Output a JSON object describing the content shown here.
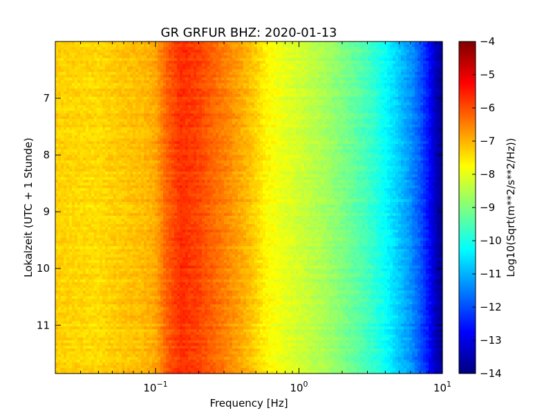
{
  "chart_data": {
    "type": "heatmap",
    "title": "GR GRFUR BHZ: 2020-01-13",
    "xlabel": "Frequency [Hz]",
    "ylabel": "Lokalzeit (UTC + 1 Stunde)",
    "x_scale": "log",
    "xlim": [
      0.02,
      10
    ],
    "ylim": [
      6.0,
      11.85
    ],
    "y_inverted": true,
    "x_ticks": [
      {
        "value": 0.1,
        "base": "10",
        "exp": "−1"
      },
      {
        "value": 1,
        "base": "10",
        "exp": "0"
      },
      {
        "value": 10,
        "base": "10",
        "exp": "1"
      }
    ],
    "y_ticks": [
      {
        "value": 7,
        "label": "7"
      },
      {
        "value": 8,
        "label": "8"
      },
      {
        "value": 9,
        "label": "9"
      },
      {
        "value": 10,
        "label": "10"
      },
      {
        "value": 11,
        "label": "11"
      }
    ],
    "colorbar": {
      "label": "Log10(Sqrt(m**2/s**2/Hz))",
      "range": [
        -14,
        -4
      ],
      "colormap": "jet",
      "ticks": [
        {
          "value": -4,
          "label": "−4"
        },
        {
          "value": -5,
          "label": "−5"
        },
        {
          "value": -6,
          "label": "−6"
        },
        {
          "value": -7,
          "label": "−7"
        },
        {
          "value": -8,
          "label": "−8"
        },
        {
          "value": -9,
          "label": "−9"
        },
        {
          "value": -10,
          "label": "−10"
        },
        {
          "value": -11,
          "label": "−11"
        },
        {
          "value": -12,
          "label": "−12"
        },
        {
          "value": -13,
          "label": "−13"
        },
        {
          "value": -14,
          "label": "−14"
        }
      ]
    },
    "spectrum_profile": {
      "frequency_hz": [
        0.02,
        0.04,
        0.06,
        0.08,
        0.1,
        0.12,
        0.15,
        0.2,
        0.3,
        0.45,
        0.6,
        0.8,
        1.0,
        1.5,
        2.0,
        3.0,
        4.0,
        5.0,
        6.0,
        7.0,
        8.0,
        9.0,
        10.0
      ],
      "level_log10": [
        -7.3,
        -7.4,
        -7.2,
        -7.1,
        -6.9,
        -6.2,
        -5.7,
        -5.9,
        -6.5,
        -7.1,
        -7.7,
        -8.0,
        -8.2,
        -8.6,
        -9.0,
        -9.6,
        -10.2,
        -10.8,
        -11.3,
        -11.9,
        -12.6,
        -13.4,
        -13.9
      ]
    }
  }
}
